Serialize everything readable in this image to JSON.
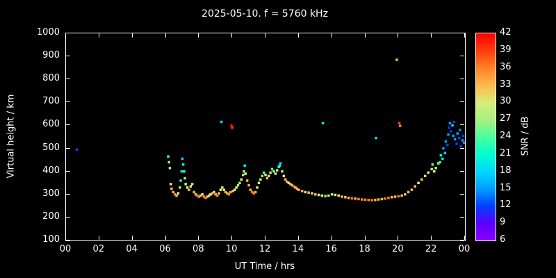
{
  "title": "2025-05-10. f = 5760 kHz",
  "chart_data": {
    "type": "scatter",
    "title": "2025-05-10. f = 5760 kHz",
    "xlabel": "UT Time / hrs",
    "ylabel": "Virtual height / km",
    "xlim": [
      0,
      24
    ],
    "ylim": [
      100,
      1000
    ],
    "grid": false,
    "background_color": "#000000",
    "axis_color": "#ffffff",
    "x_ticks": {
      "values": [
        0,
        2,
        4,
        6,
        8,
        10,
        12,
        14,
        16,
        18,
        20,
        22,
        24
      ],
      "labels": [
        "00",
        "02",
        "04",
        "06",
        "08",
        "10",
        "12",
        "14",
        "16",
        "18",
        "20",
        "22",
        "00"
      ]
    },
    "y_ticks": [
      100,
      200,
      300,
      400,
      500,
      600,
      700,
      800,
      900,
      1000
    ],
    "colorbar": {
      "label": "SNR / dB",
      "min": 6,
      "max": 42,
      "ticks": [
        6,
        9,
        12,
        15,
        18,
        21,
        24,
        27,
        30,
        33,
        36,
        39,
        42
      ],
      "stops": [
        {
          "v": 6,
          "c": "#8a00ff"
        },
        {
          "v": 9,
          "c": "#5a00ff"
        },
        {
          "v": 12,
          "c": "#0040ff"
        },
        {
          "v": 15,
          "c": "#00a0ff"
        },
        {
          "v": 18,
          "c": "#00d8ff"
        },
        {
          "v": 21,
          "c": "#00ffd0"
        },
        {
          "v": 24,
          "c": "#48ff9a"
        },
        {
          "v": 27,
          "c": "#a8f080"
        },
        {
          "v": 30,
          "c": "#d8ee7a"
        },
        {
          "v": 33,
          "c": "#ffb84d"
        },
        {
          "v": 36,
          "c": "#ff8226"
        },
        {
          "v": 39,
          "c": "#ff3d0d"
        },
        {
          "v": 42,
          "c": "#ff0000"
        }
      ]
    },
    "points_format": [
      "ut_hours",
      "virtual_height_km",
      "snr_db"
    ],
    "points": [
      [
        0.65,
        495,
        12
      ],
      [
        6.15,
        465,
        24
      ],
      [
        6.2,
        440,
        27
      ],
      [
        6.25,
        415,
        27
      ],
      [
        6.3,
        345,
        30
      ],
      [
        6.35,
        325,
        33
      ],
      [
        6.45,
        310,
        33
      ],
      [
        6.55,
        300,
        36
      ],
      [
        6.65,
        295,
        33
      ],
      [
        6.75,
        305,
        30
      ],
      [
        6.85,
        330,
        27
      ],
      [
        6.9,
        360,
        21
      ],
      [
        6.95,
        400,
        18
      ],
      [
        7.0,
        455,
        18
      ],
      [
        7.05,
        430,
        21
      ],
      [
        7.1,
        400,
        24
      ],
      [
        7.15,
        370,
        27
      ],
      [
        7.2,
        345,
        30
      ],
      [
        7.3,
        330,
        30
      ],
      [
        7.4,
        320,
        33
      ],
      [
        7.5,
        335,
        30
      ],
      [
        7.6,
        345,
        27
      ],
      [
        7.7,
        310,
        33
      ],
      [
        7.8,
        300,
        33
      ],
      [
        7.9,
        295,
        36
      ],
      [
        8.0,
        290,
        36
      ],
      [
        8.1,
        295,
        33
      ],
      [
        8.2,
        300,
        30
      ],
      [
        8.3,
        290,
        36
      ],
      [
        8.4,
        285,
        36
      ],
      [
        8.5,
        290,
        33
      ],
      [
        8.6,
        295,
        30
      ],
      [
        8.7,
        300,
        30
      ],
      [
        8.8,
        305,
        33
      ],
      [
        8.9,
        310,
        30
      ],
      [
        9.0,
        300,
        33
      ],
      [
        9.1,
        295,
        36
      ],
      [
        9.2,
        305,
        33
      ],
      [
        9.3,
        320,
        30
      ],
      [
        9.35,
        615,
        18
      ],
      [
        9.4,
        330,
        27
      ],
      [
        9.5,
        320,
        30
      ],
      [
        9.6,
        310,
        33
      ],
      [
        9.7,
        305,
        33
      ],
      [
        9.8,
        300,
        36
      ],
      [
        9.9,
        310,
        33
      ],
      [
        9.95,
        600,
        42
      ],
      [
        10.0,
        590,
        39
      ],
      [
        10.05,
        315,
        33
      ],
      [
        10.15,
        320,
        30
      ],
      [
        10.25,
        330,
        30
      ],
      [
        10.35,
        340,
        27
      ],
      [
        10.45,
        350,
        27
      ],
      [
        10.55,
        365,
        30
      ],
      [
        10.65,
        385,
        27
      ],
      [
        10.7,
        400,
        27
      ],
      [
        10.75,
        425,
        21
      ],
      [
        10.8,
        390,
        30
      ],
      [
        10.9,
        360,
        33
      ],
      [
        11.0,
        340,
        33
      ],
      [
        11.1,
        320,
        33
      ],
      [
        11.2,
        310,
        36
      ],
      [
        11.3,
        305,
        36
      ],
      [
        11.4,
        310,
        33
      ],
      [
        11.5,
        330,
        30
      ],
      [
        11.6,
        350,
        30
      ],
      [
        11.7,
        365,
        27
      ],
      [
        11.8,
        380,
        27
      ],
      [
        11.9,
        395,
        24
      ],
      [
        12.0,
        385,
        30
      ],
      [
        12.1,
        370,
        33
      ],
      [
        12.2,
        380,
        30
      ],
      [
        12.3,
        395,
        27
      ],
      [
        12.4,
        410,
        24
      ],
      [
        12.5,
        400,
        27
      ],
      [
        12.6,
        390,
        30
      ],
      [
        12.7,
        405,
        27
      ],
      [
        12.8,
        420,
        24
      ],
      [
        12.85,
        425,
        21
      ],
      [
        12.9,
        435,
        18
      ],
      [
        13.0,
        400,
        27
      ],
      [
        13.1,
        380,
        30
      ],
      [
        13.2,
        365,
        33
      ],
      [
        13.3,
        355,
        33
      ],
      [
        13.4,
        350,
        30
      ],
      [
        13.5,
        345,
        33
      ],
      [
        13.6,
        340,
        33
      ],
      [
        13.7,
        335,
        36
      ],
      [
        13.8,
        330,
        33
      ],
      [
        13.9,
        325,
        33
      ],
      [
        14.0,
        320,
        33
      ],
      [
        14.2,
        315,
        33
      ],
      [
        14.4,
        310,
        30
      ],
      [
        14.6,
        308,
        33
      ],
      [
        14.8,
        305,
        30
      ],
      [
        15.0,
        300,
        33
      ],
      [
        15.2,
        298,
        30
      ],
      [
        15.4,
        295,
        30
      ],
      [
        15.45,
        610,
        21
      ],
      [
        15.6,
        293,
        27
      ],
      [
        15.8,
        295,
        27
      ],
      [
        16.0,
        300,
        27
      ],
      [
        16.2,
        298,
        30
      ],
      [
        16.4,
        295,
        30
      ],
      [
        16.6,
        290,
        33
      ],
      [
        16.8,
        288,
        33
      ],
      [
        17.0,
        285,
        33
      ],
      [
        17.2,
        283,
        36
      ],
      [
        17.4,
        282,
        33
      ],
      [
        17.6,
        280,
        36
      ],
      [
        17.8,
        278,
        36
      ],
      [
        18.0,
        277,
        36
      ],
      [
        18.2,
        276,
        36
      ],
      [
        18.4,
        275,
        36
      ],
      [
        18.6,
        276,
        33
      ],
      [
        18.65,
        545,
        18
      ],
      [
        18.8,
        278,
        33
      ],
      [
        19.0,
        280,
        33
      ],
      [
        19.2,
        282,
        36
      ],
      [
        19.4,
        285,
        36
      ],
      [
        19.6,
        288,
        33
      ],
      [
        19.8,
        290,
        33
      ],
      [
        19.9,
        885,
        33
      ],
      [
        20.0,
        292,
        36
      ],
      [
        20.05,
        610,
        39
      ],
      [
        20.1,
        598,
        36
      ],
      [
        20.2,
        295,
        33
      ],
      [
        20.4,
        300,
        33
      ],
      [
        20.6,
        310,
        33
      ],
      [
        20.8,
        320,
        33
      ],
      [
        21.0,
        335,
        33
      ],
      [
        21.2,
        350,
        30
      ],
      [
        21.4,
        365,
        33
      ],
      [
        21.6,
        380,
        30
      ],
      [
        21.8,
        395,
        30
      ],
      [
        22.0,
        410,
        27
      ],
      [
        22.05,
        430,
        24
      ],
      [
        22.15,
        400,
        30
      ],
      [
        22.25,
        415,
        27
      ],
      [
        22.4,
        435,
        24
      ],
      [
        22.5,
        440,
        24
      ],
      [
        22.55,
        470,
        21
      ],
      [
        22.65,
        455,
        18
      ],
      [
        22.7,
        500,
        15
      ],
      [
        22.8,
        480,
        18
      ],
      [
        22.85,
        530,
        15
      ],
      [
        22.95,
        515,
        12
      ],
      [
        23.0,
        560,
        15
      ],
      [
        23.05,
        590,
        12
      ],
      [
        23.1,
        610,
        15
      ],
      [
        23.15,
        575,
        12
      ],
      [
        23.25,
        600,
        18
      ],
      [
        23.3,
        555,
        15
      ],
      [
        23.35,
        615,
        12
      ],
      [
        23.4,
        540,
        15
      ],
      [
        23.5,
        520,
        12
      ],
      [
        23.55,
        565,
        15
      ],
      [
        23.65,
        545,
        12
      ],
      [
        23.7,
        580,
        15
      ],
      [
        23.75,
        510,
        12
      ],
      [
        23.85,
        535,
        15
      ],
      [
        23.9,
        555,
        12
      ],
      [
        23.95,
        525,
        15
      ]
    ]
  }
}
